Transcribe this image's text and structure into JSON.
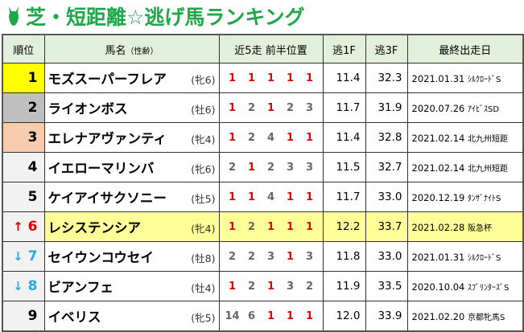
{
  "title": "芝・短距離☆逃げ馬ランキング",
  "colors": {
    "accent": "#1fa84a",
    "red": "#e00000",
    "gray": "#666666",
    "up": "#e00000",
    "down": "#2aa7e8",
    "rank1": "#ffff00",
    "rank2": "#bfbfbf",
    "rank3": "#f8cbad",
    "highlight": "#ffff99",
    "header": "#e2efda"
  },
  "headers": {
    "rank": "順位",
    "name": "馬名",
    "name_sub": "（性齢）",
    "positions": "近5走 前半位置",
    "f1": "逃1F",
    "f3": "逃3F",
    "last": "最終出走日"
  },
  "rows": [
    {
      "rank": "1",
      "arrow": "",
      "name": "モズスーパーフレア",
      "sexage": "(牝6)",
      "pos": [
        "1",
        "1",
        "1",
        "1",
        "1"
      ],
      "f1": "11.4",
      "f3": "32.3",
      "date": "2021.01.31",
      "race": "ｼﾙｸﾛｰﾄﾞS"
    },
    {
      "rank": "2",
      "arrow": "",
      "name": "ライオンボス",
      "sexage": "(牡6)",
      "pos": [
        "1",
        "2",
        "1",
        "2",
        "3"
      ],
      "f1": "11.7",
      "f3": "31.9",
      "date": "2020.07.26",
      "race": "ｱｲﾋﾞｽSD"
    },
    {
      "rank": "3",
      "arrow": "",
      "name": "エレナアヴァンティ",
      "sexage": "(牝4)",
      "pos": [
        "1",
        "2",
        "4",
        "1",
        "1"
      ],
      "f1": "11.4",
      "f3": "32.8",
      "date": "2021.02.14",
      "race": "北九州短距"
    },
    {
      "rank": "4",
      "arrow": "",
      "name": "イエローマリンバ",
      "sexage": "(牝6)",
      "pos": [
        "2",
        "1",
        "2",
        "3",
        "3"
      ],
      "f1": "11.5",
      "f3": "32.7",
      "date": "2021.02.14",
      "race": "北九州短距"
    },
    {
      "rank": "5",
      "arrow": "",
      "name": "ケイアイサクソニー",
      "sexage": "(牡5)",
      "pos": [
        "1",
        "1",
        "4",
        "1",
        "1"
      ],
      "f1": "11.7",
      "f3": "33.0",
      "date": "2020.12.19",
      "race": "ﾀﾝｻﾞﾅｲﾄS"
    },
    {
      "rank": "6",
      "arrow": "↑",
      "name": "レシステンシア",
      "sexage": "(牝4)",
      "pos": [
        "1",
        "2",
        "1",
        "1",
        "1"
      ],
      "f1": "12.2",
      "f3": "33.7",
      "date": "2021.02.28",
      "race": "阪急杯"
    },
    {
      "rank": "7",
      "arrow": "↓",
      "name": "セイウンコウセイ",
      "sexage": "(牡8)",
      "pos": [
        "2",
        "2",
        "3",
        "1",
        "3"
      ],
      "f1": "11.8",
      "f3": "33.0",
      "date": "2021.01.31",
      "race": "ｼﾙｸﾛｰﾄﾞS"
    },
    {
      "rank": "8",
      "arrow": "↓",
      "name": "ビアンフェ",
      "sexage": "(牡4)",
      "pos": [
        "1",
        "2",
        "1",
        "3",
        "2"
      ],
      "f1": "11.9",
      "f3": "33.5",
      "date": "2020.10.04",
      "race": "ｽﾌﾟﾘﾝﾀｰｽﾞS"
    },
    {
      "rank": "9",
      "arrow": "",
      "name": "イベリス",
      "sexage": "(牝5)",
      "pos": [
        "14",
        "6",
        "1",
        "1",
        "1"
      ],
      "f1": "12.0",
      "f3": "33.9",
      "date": "2021.02.20",
      "race": "京都牝馬S"
    }
  ]
}
